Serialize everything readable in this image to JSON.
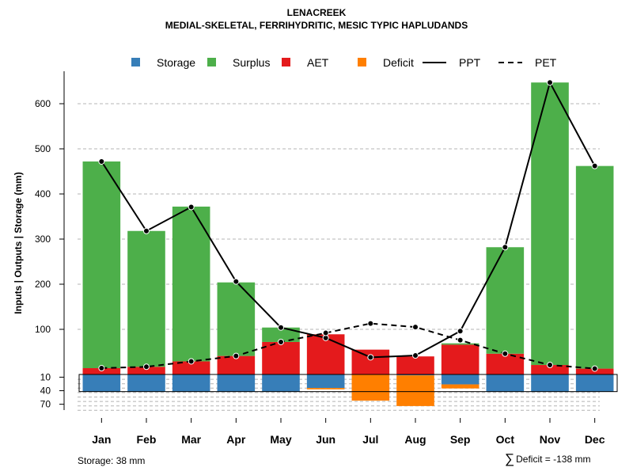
{
  "header": {
    "title": "LENACREEK",
    "subtitle": "MEDIAL-SKELETAL, FERRIHYDRITIC, MESIC TYPIC HAPLUDANDS"
  },
  "footer": {
    "storage_note": "Storage: 38 mm",
    "deficit_symbol": "∑",
    "deficit_note": "Deficit = -138 mm"
  },
  "chart_data": {
    "type": "bar",
    "title": "LENACREEK",
    "subtitle": "MEDIAL-SKELETAL, FERRIHYDRITIC, MESIC TYPIC HAPLUDANDS",
    "ylabel": "Inputs | Outputs | Storage    (mm)",
    "xlabel": "",
    "categories": [
      "Jan",
      "Feb",
      "Mar",
      "Apr",
      "May",
      "Jun",
      "Jul",
      "Aug",
      "Sep",
      "Oct",
      "Nov",
      "Dec"
    ],
    "y_ticks_upper": [
      100,
      200,
      300,
      400,
      500,
      600
    ],
    "y_ticks_lower": [
      10,
      40,
      70
    ],
    "ylim": [
      -80,
      650
    ],
    "storage_capacity": 38,
    "legend": [
      {
        "name": "Storage",
        "kind": "box",
        "color": "#377eb8"
      },
      {
        "name": "Surplus",
        "kind": "box",
        "color": "#4daf4a"
      },
      {
        "name": "AET",
        "kind": "box",
        "color": "#e41a1c"
      },
      {
        "name": "Deficit",
        "kind": "box",
        "color": "#ff7f00"
      },
      {
        "name": "PPT",
        "kind": "solid"
      },
      {
        "name": "PET",
        "kind": "dashed"
      }
    ],
    "series": [
      {
        "name": "Storage",
        "color": "#377eb8",
        "values": [
          38,
          38,
          38,
          38,
          38,
          30,
          0,
          2,
          22,
          38,
          38,
          38
        ]
      },
      {
        "name": "Surplus",
        "color": "#4daf4a",
        "values": [
          458,
          301,
          343,
          163,
          32,
          0,
          0,
          0,
          3,
          236,
          626,
          449
        ]
      },
      {
        "name": "AET",
        "color": "#e41a1c",
        "values": [
          14,
          17,
          29,
          41,
          72,
          89,
          55,
          40,
          66,
          46,
          21,
          13
        ]
      },
      {
        "name": "Deficit",
        "color": "#ff7f00",
        "values": [
          0,
          0,
          0,
          0,
          0,
          -3,
          -58,
          -68,
          -9,
          0,
          0,
          0
        ]
      },
      {
        "name": "PPT",
        "color": "#000000",
        "values": [
          472,
          318,
          371,
          206,
          104,
          81,
          38,
          42,
          96,
          282,
          647,
          462
        ]
      },
      {
        "name": "PET",
        "color": "#000000",
        "values": [
          14,
          17,
          29,
          41,
          72,
          92,
          113,
          105,
          76,
          46,
          21,
          13
        ]
      }
    ],
    "grid": true,
    "legend_position": "top"
  }
}
